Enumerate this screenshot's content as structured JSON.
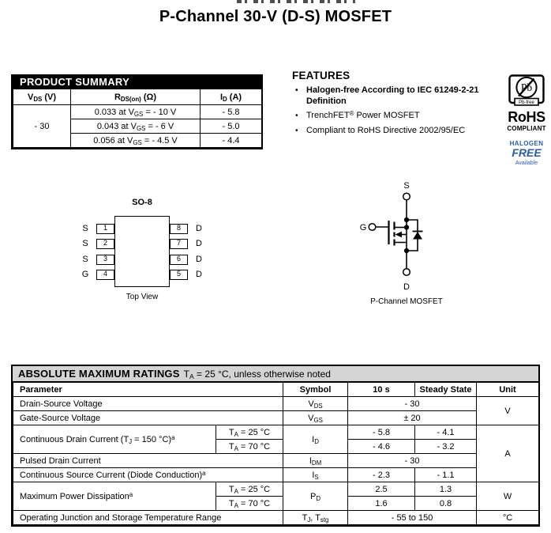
{
  "page": {
    "title": "P-Channel 30-V (D-S) MOSFET"
  },
  "product_summary": {
    "header": "PRODUCT SUMMARY",
    "columns": {
      "vds": "V<sub>DS</sub> (V)",
      "rds": "R<sub>DS(on)</sub> (Ω)",
      "id": "I<sub>D</sub> (A)"
    },
    "vds_value": "- 30",
    "rows": [
      {
        "rds": "0.033 at V<sub>GS</sub> = - 10 V",
        "id": "- 5.8"
      },
      {
        "rds": "0.043 at V<sub>GS</sub> = - 6 V",
        "id": "- 5.0"
      },
      {
        "rds": "0.056 at V<sub>GS</sub> = - 4.5 V",
        "id": "- 4.4"
      }
    ]
  },
  "features": {
    "heading": "FEATURES",
    "bullet_glyph": "•",
    "items": [
      {
        "html": "Halogen-free According to IEC 61249-2-21<br>Definition"
      },
      {
        "html": "TrenchFET<sup>®</sup> Power MOSFET"
      },
      {
        "html": "Compliant to RoHS Directive 2002/95/EC"
      }
    ]
  },
  "badges": {
    "pb_symbol": "Pb",
    "pb_free_label": "Pb-free",
    "rohs": "RoHS",
    "compliant": "COMPLIANT",
    "halogen": "HALOGEN",
    "free": "FREE",
    "available": "Available",
    "blue": "#2a5caa"
  },
  "so8": {
    "title": "SO-8",
    "caption": "Top View",
    "left_pins": [
      {
        "label": "S",
        "num": "1"
      },
      {
        "label": "S",
        "num": "2"
      },
      {
        "label": "S",
        "num": "3"
      },
      {
        "label": "G",
        "num": "4"
      }
    ],
    "right_pins": [
      {
        "label": "D",
        "num": "8"
      },
      {
        "label": "D",
        "num": "7"
      },
      {
        "label": "D",
        "num": "6"
      },
      {
        "label": "D",
        "num": "5"
      }
    ]
  },
  "mosfet": {
    "s": "S",
    "g": "G",
    "d": "D",
    "caption": "P-Channel MOSFET"
  },
  "abs_max": {
    "title": "ABSOLUTE MAXIMUM RATINGS",
    "title_note": "T<sub>A</sub> = 25 °C, unless otherwise noted",
    "headers": {
      "parameter": "Parameter",
      "symbol": "Symbol",
      "ten_s": "10 s",
      "steady_state": "Steady State",
      "unit": "Unit"
    },
    "rows": {
      "vds": {
        "param": "Drain-Source Voltage",
        "sym": "V<sub>DS</sub>",
        "val": "- 30"
      },
      "vgs": {
        "param": "Gate-Source Voltage",
        "sym": "V<sub>GS</sub>",
        "val": "± 20"
      },
      "id": {
        "param": "Continuous Drain Current (T<sub>J</sub> = 150 °C)<sup>a</sup>",
        "cond1": "T<sub>A</sub> = 25 °C",
        "cond2": "T<sub>A</sub> = 70 °C",
        "sym": "I<sub>D</sub>",
        "v1_10s": "- 5.8",
        "v1_ss": "- 4.1",
        "v2_10s": "- 4.6",
        "v2_ss": "- 3.2"
      },
      "idm": {
        "param": "Pulsed Drain Current",
        "sym": "I<sub>DM</sub>",
        "val": "- 30"
      },
      "is": {
        "param": "Continuous Source Current (Diode Conduction)<sup>a</sup>",
        "sym": "I<sub>S</sub>",
        "v_10s": "- 2.3",
        "v_ss": "- 1.1"
      },
      "pd": {
        "param": "Maximum Power Dissipation<sup>a</sup>",
        "cond1": "T<sub>A</sub> = 25 °C",
        "cond2": "T<sub>A</sub> = 70 °C",
        "sym": "P<sub>D</sub>",
        "v1_10s": "2.5",
        "v1_ss": "1.3",
        "v2_10s": "1.6",
        "v2_ss": "0.8"
      },
      "tjstg": {
        "param": "Operating Junction and Storage Temperature Range",
        "sym": "T<sub>J</sub>, T<sub>stg</sub>",
        "val": "- 55 to 150"
      }
    },
    "units": {
      "v": "V",
      "a": "A",
      "w": "W",
      "c": "°C"
    }
  }
}
